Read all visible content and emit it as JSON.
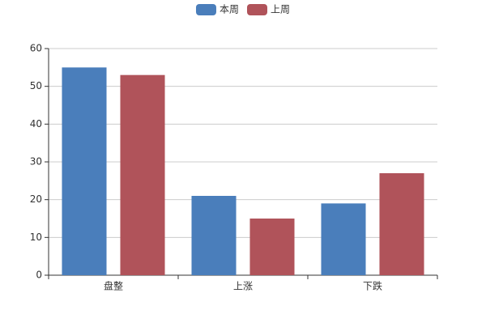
{
  "chart_data": {
    "type": "bar",
    "categories": [
      "盘整",
      "上涨",
      "下跌"
    ],
    "series": [
      {
        "name": "本周",
        "color": "#4a7ebb",
        "values": [
          55,
          21,
          19
        ]
      },
      {
        "name": "上周",
        "color": "#b0535a",
        "values": [
          53,
          15,
          27
        ]
      }
    ],
    "ylim": [
      0,
      60
    ],
    "yticks": [
      0,
      10,
      20,
      30,
      40,
      50,
      60
    ],
    "grid": true,
    "legend": "top"
  }
}
